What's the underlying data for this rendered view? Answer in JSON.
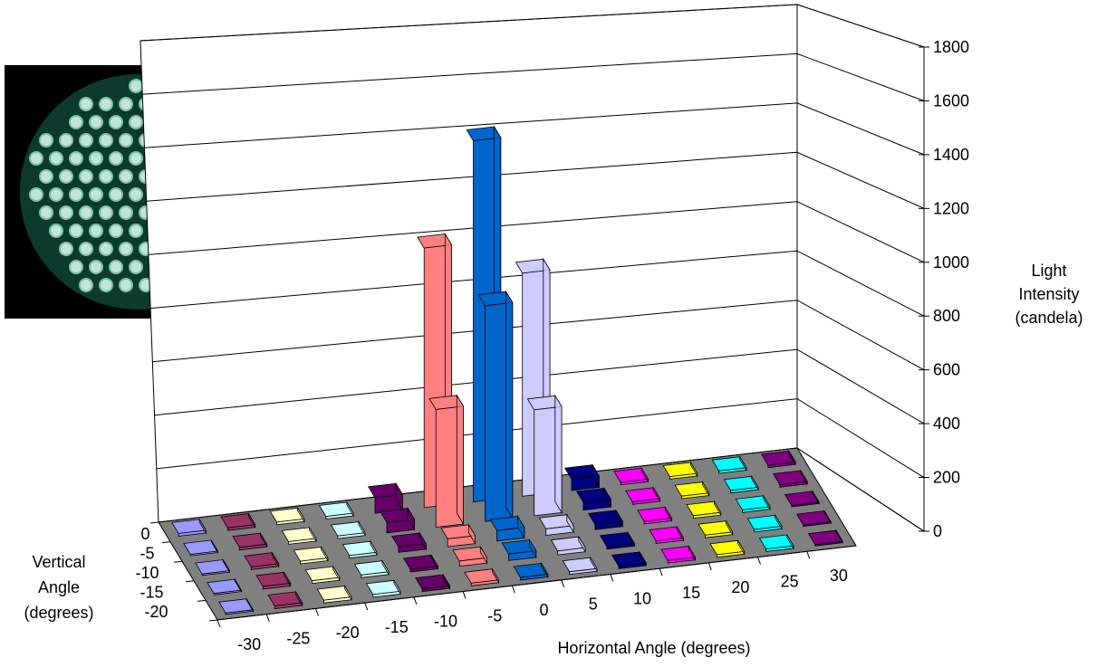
{
  "chart_data": {
    "type": "bar3d",
    "x_label": "Horizontal Angle (degrees)",
    "z_label_lines": [
      "Vertical",
      "Angle",
      "(degrees)"
    ],
    "y_label_lines": [
      "Light",
      "Intensity",
      "(candela)"
    ],
    "categories": [
      -30,
      -25,
      -20,
      -15,
      -10,
      -5,
      0,
      5,
      10,
      15,
      20,
      25,
      30
    ],
    "rows": [
      0,
      -5,
      -10,
      -15,
      -20
    ],
    "colors": [
      "#9999ff",
      "#993366",
      "#ffffcc",
      "#ccffff",
      "#660066",
      "#ff8080",
      "#0066cc",
      "#ccccff",
      "#000080",
      "#ff00ff",
      "#ffff00",
      "#00ffff",
      "#800080"
    ],
    "values": [
      [
        10,
        10,
        10,
        10,
        60,
        1000,
        1400,
        870,
        45,
        10,
        10,
        10,
        10
      ],
      [
        5,
        10,
        10,
        10,
        40,
        450,
        830,
        410,
        30,
        10,
        10,
        10,
        10
      ],
      [
        5,
        10,
        10,
        10,
        20,
        30,
        40,
        25,
        20,
        10,
        10,
        10,
        5
      ],
      [
        5,
        10,
        10,
        10,
        10,
        20,
        25,
        15,
        10,
        10,
        10,
        10,
        5
      ],
      [
        5,
        10,
        10,
        10,
        10,
        10,
        10,
        10,
        10,
        10,
        10,
        10,
        5
      ]
    ],
    "ylim": [
      0,
      1800
    ],
    "yticks": [
      0,
      200,
      400,
      600,
      800,
      1000,
      1200,
      1400,
      1600,
      1800
    ],
    "grid": true
  }
}
